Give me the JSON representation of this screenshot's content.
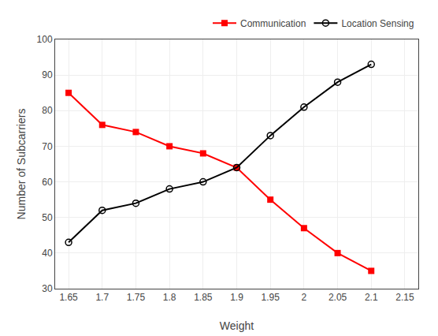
{
  "chart_data": {
    "type": "line",
    "x_label": "Weight",
    "y_label": "Number of Subcarriers",
    "x": [
      1.65,
      1.7,
      1.75,
      1.8,
      1.85,
      1.9,
      1.95,
      2.0,
      2.05,
      2.1
    ],
    "series": [
      {
        "name": "Communication",
        "color": "#FF0000",
        "marker": "square",
        "values": [
          85,
          76,
          74,
          70,
          68,
          64,
          55,
          47,
          40,
          35
        ]
      },
      {
        "name": "Location Sensing",
        "color": "#000000",
        "marker": "circle-open",
        "values": [
          43,
          52,
          54,
          58,
          60,
          64,
          73,
          81,
          88,
          93
        ]
      }
    ],
    "xlim": [
      1.63,
      2.17
    ],
    "ylim": [
      30,
      100
    ],
    "xticks": [
      1.65,
      1.7,
      1.75,
      1.8,
      1.85,
      1.9,
      1.95,
      2,
      2.05,
      2.1,
      2.15
    ],
    "yticks": [
      30,
      40,
      50,
      60,
      70,
      80,
      90,
      100
    ],
    "grid": true,
    "legend": "upper right"
  }
}
